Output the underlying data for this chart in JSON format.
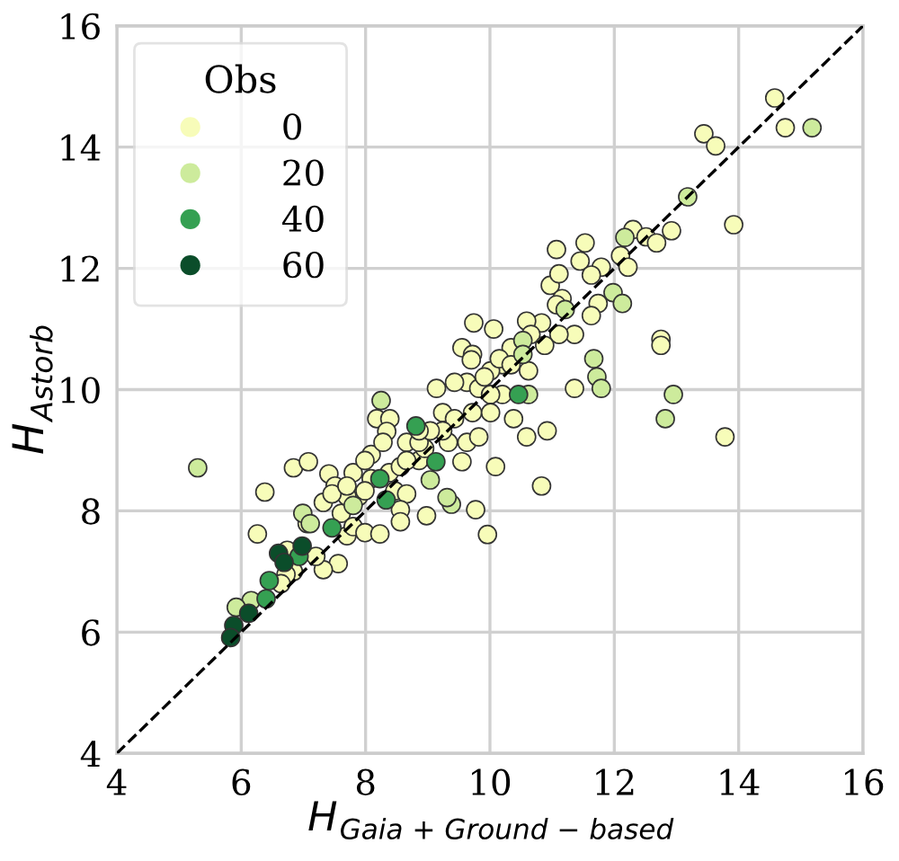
{
  "chart_data": {
    "type": "scatter",
    "xlabel": "H$_{Gaia + Ground − based}$",
    "ylabel": "H$_{Astorb}$",
    "legend_title": "Obs",
    "legend": "top left",
    "grid": true,
    "marker": "circle",
    "xlim": [
      4,
      16
    ],
    "ylim": [
      4,
      16
    ],
    "xticks": [
      4,
      6,
      8,
      10,
      12,
      14,
      16
    ],
    "yticks": [
      4,
      6,
      8,
      10,
      12,
      14,
      16
    ],
    "series": [
      {
        "name": "0",
        "color": "#f7fcb9",
        "x": [
          14.58,
          14.75,
          13.44,
          13.63,
          13.92,
          12.92,
          12.3,
          12.51,
          12.68,
          11.07,
          11.53,
          11.45,
          11.79,
          12.1,
          12.22,
          10.97,
          11.11,
          11.63,
          11.74,
          11.63,
          11.16,
          11.07,
          11.36,
          11.11,
          10.83,
          9.74,
          10.06,
          10.59,
          10.66,
          10.88,
          10.34,
          10.2,
          10.62,
          9.55,
          9.72,
          9.7,
          12.75,
          12.75,
          11.36,
          10.2,
          13.78,
          10.92,
          10.59,
          10.38,
          10.09,
          10.83,
          9.77,
          9.96,
          8.98,
          9.55,
          8.18,
          8.39,
          8.34,
          9.14,
          9.63,
          9.82,
          9.24,
          9.43,
          9.63,
          9.33,
          9.82,
          8.66,
          8.86,
          6.84,
          7.08,
          6.38,
          6.26,
          7.41,
          7.8,
          8.09,
          8.38,
          8.56,
          8.47,
          8.66,
          8.56,
          8.56,
          7.51,
          7.89,
          7.61,
          7.06,
          7.7,
          7.8,
          7.99,
          8.23,
          7.56,
          7.32,
          7.2,
          6.74,
          6.84,
          6.72,
          6.64,
          7.99,
          8.28,
          8.95,
          9.24,
          9.72,
          10.01,
          10.01,
          10.15,
          10.34,
          9.91,
          9.43,
          10.01,
          8.86,
          9.04,
          8.66,
          8.09,
          7.99,
          7.7,
          7.32,
          7.46,
          7.7,
          8.86
        ],
        "values": [
          14.81,
          14.32,
          14.22,
          14.02,
          12.72,
          12.62,
          12.64,
          12.52,
          12.42,
          12.31,
          12.42,
          12.12,
          12.02,
          12.21,
          12.02,
          11.72,
          11.91,
          11.89,
          11.42,
          11.22,
          11.5,
          11.4,
          10.91,
          10.91,
          11.1,
          11.1,
          11.0,
          11.13,
          10.91,
          10.73,
          10.69,
          10.41,
          10.31,
          10.69,
          10.58,
          10.49,
          10.83,
          10.73,
          10.02,
          9.92,
          9.22,
          9.32,
          9.22,
          9.52,
          8.73,
          8.41,
          8.02,
          7.61,
          7.92,
          8.81,
          9.52,
          9.52,
          9.31,
          10.02,
          10.12,
          10.02,
          9.62,
          9.52,
          9.13,
          9.13,
          9.22,
          9.13,
          8.83,
          8.71,
          8.81,
          8.31,
          7.62,
          8.61,
          8.63,
          8.93,
          8.63,
          8.73,
          8.33,
          8.28,
          8.02,
          7.82,
          8.41,
          8.24,
          7.96,
          7.79,
          7.59,
          7.74,
          7.64,
          7.62,
          7.13,
          7.03,
          7.25,
          7.35,
          7.0,
          6.95,
          6.8,
          8.83,
          9.13,
          9.03,
          9.32,
          9.62,
          9.62,
          10.31,
          10.51,
          10.41,
          10.21,
          10.12,
          9.92,
          9.13,
          9.32,
          8.83,
          8.53,
          8.33,
          8.24,
          8.14,
          8.28,
          8.41,
          9.32
        ]
      },
      {
        "name": "20",
        "color": "#cdeb9c",
        "x": [
          15.18,
          13.18,
          12.17,
          11.98,
          12.13,
          11.21,
          10.53,
          10.53,
          11.67,
          11.72,
          11.79,
          10.62,
          12.95,
          12.82,
          9.38,
          9.31,
          9.04,
          8.25,
          5.3,
          6.99,
          7.11,
          6.16,
          5.92,
          7.8
        ],
        "values": [
          14.32,
          13.18,
          12.51,
          11.6,
          11.42,
          11.32,
          10.81,
          10.58,
          10.51,
          10.21,
          10.02,
          9.92,
          9.92,
          9.52,
          8.11,
          8.22,
          8.51,
          9.82,
          8.71,
          7.96,
          7.79,
          6.52,
          6.41,
          8.09
        ]
      },
      {
        "name": "40",
        "color": "#35a052",
        "x": [
          10.46,
          9.13,
          8.81,
          8.23,
          8.33,
          7.46,
          6.45,
          6.4,
          6.93
        ],
        "values": [
          9.92,
          8.81,
          9.4,
          8.53,
          8.18,
          7.72,
          6.85,
          6.55,
          7.25
        ]
      },
      {
        "name": "60",
        "color": "#0b4d2a",
        "x": [
          6.98,
          6.6,
          6.69,
          6.12,
          5.88,
          5.83
        ],
        "values": [
          7.42,
          7.3,
          7.15,
          6.31,
          6.11,
          5.91
        ]
      },
      {
        "type": "line",
        "x": [
          4,
          16
        ],
        "values": [
          4,
          16
        ],
        "color": "#000000",
        "line_style": "dashed",
        "marker": "none"
      }
    ]
  }
}
